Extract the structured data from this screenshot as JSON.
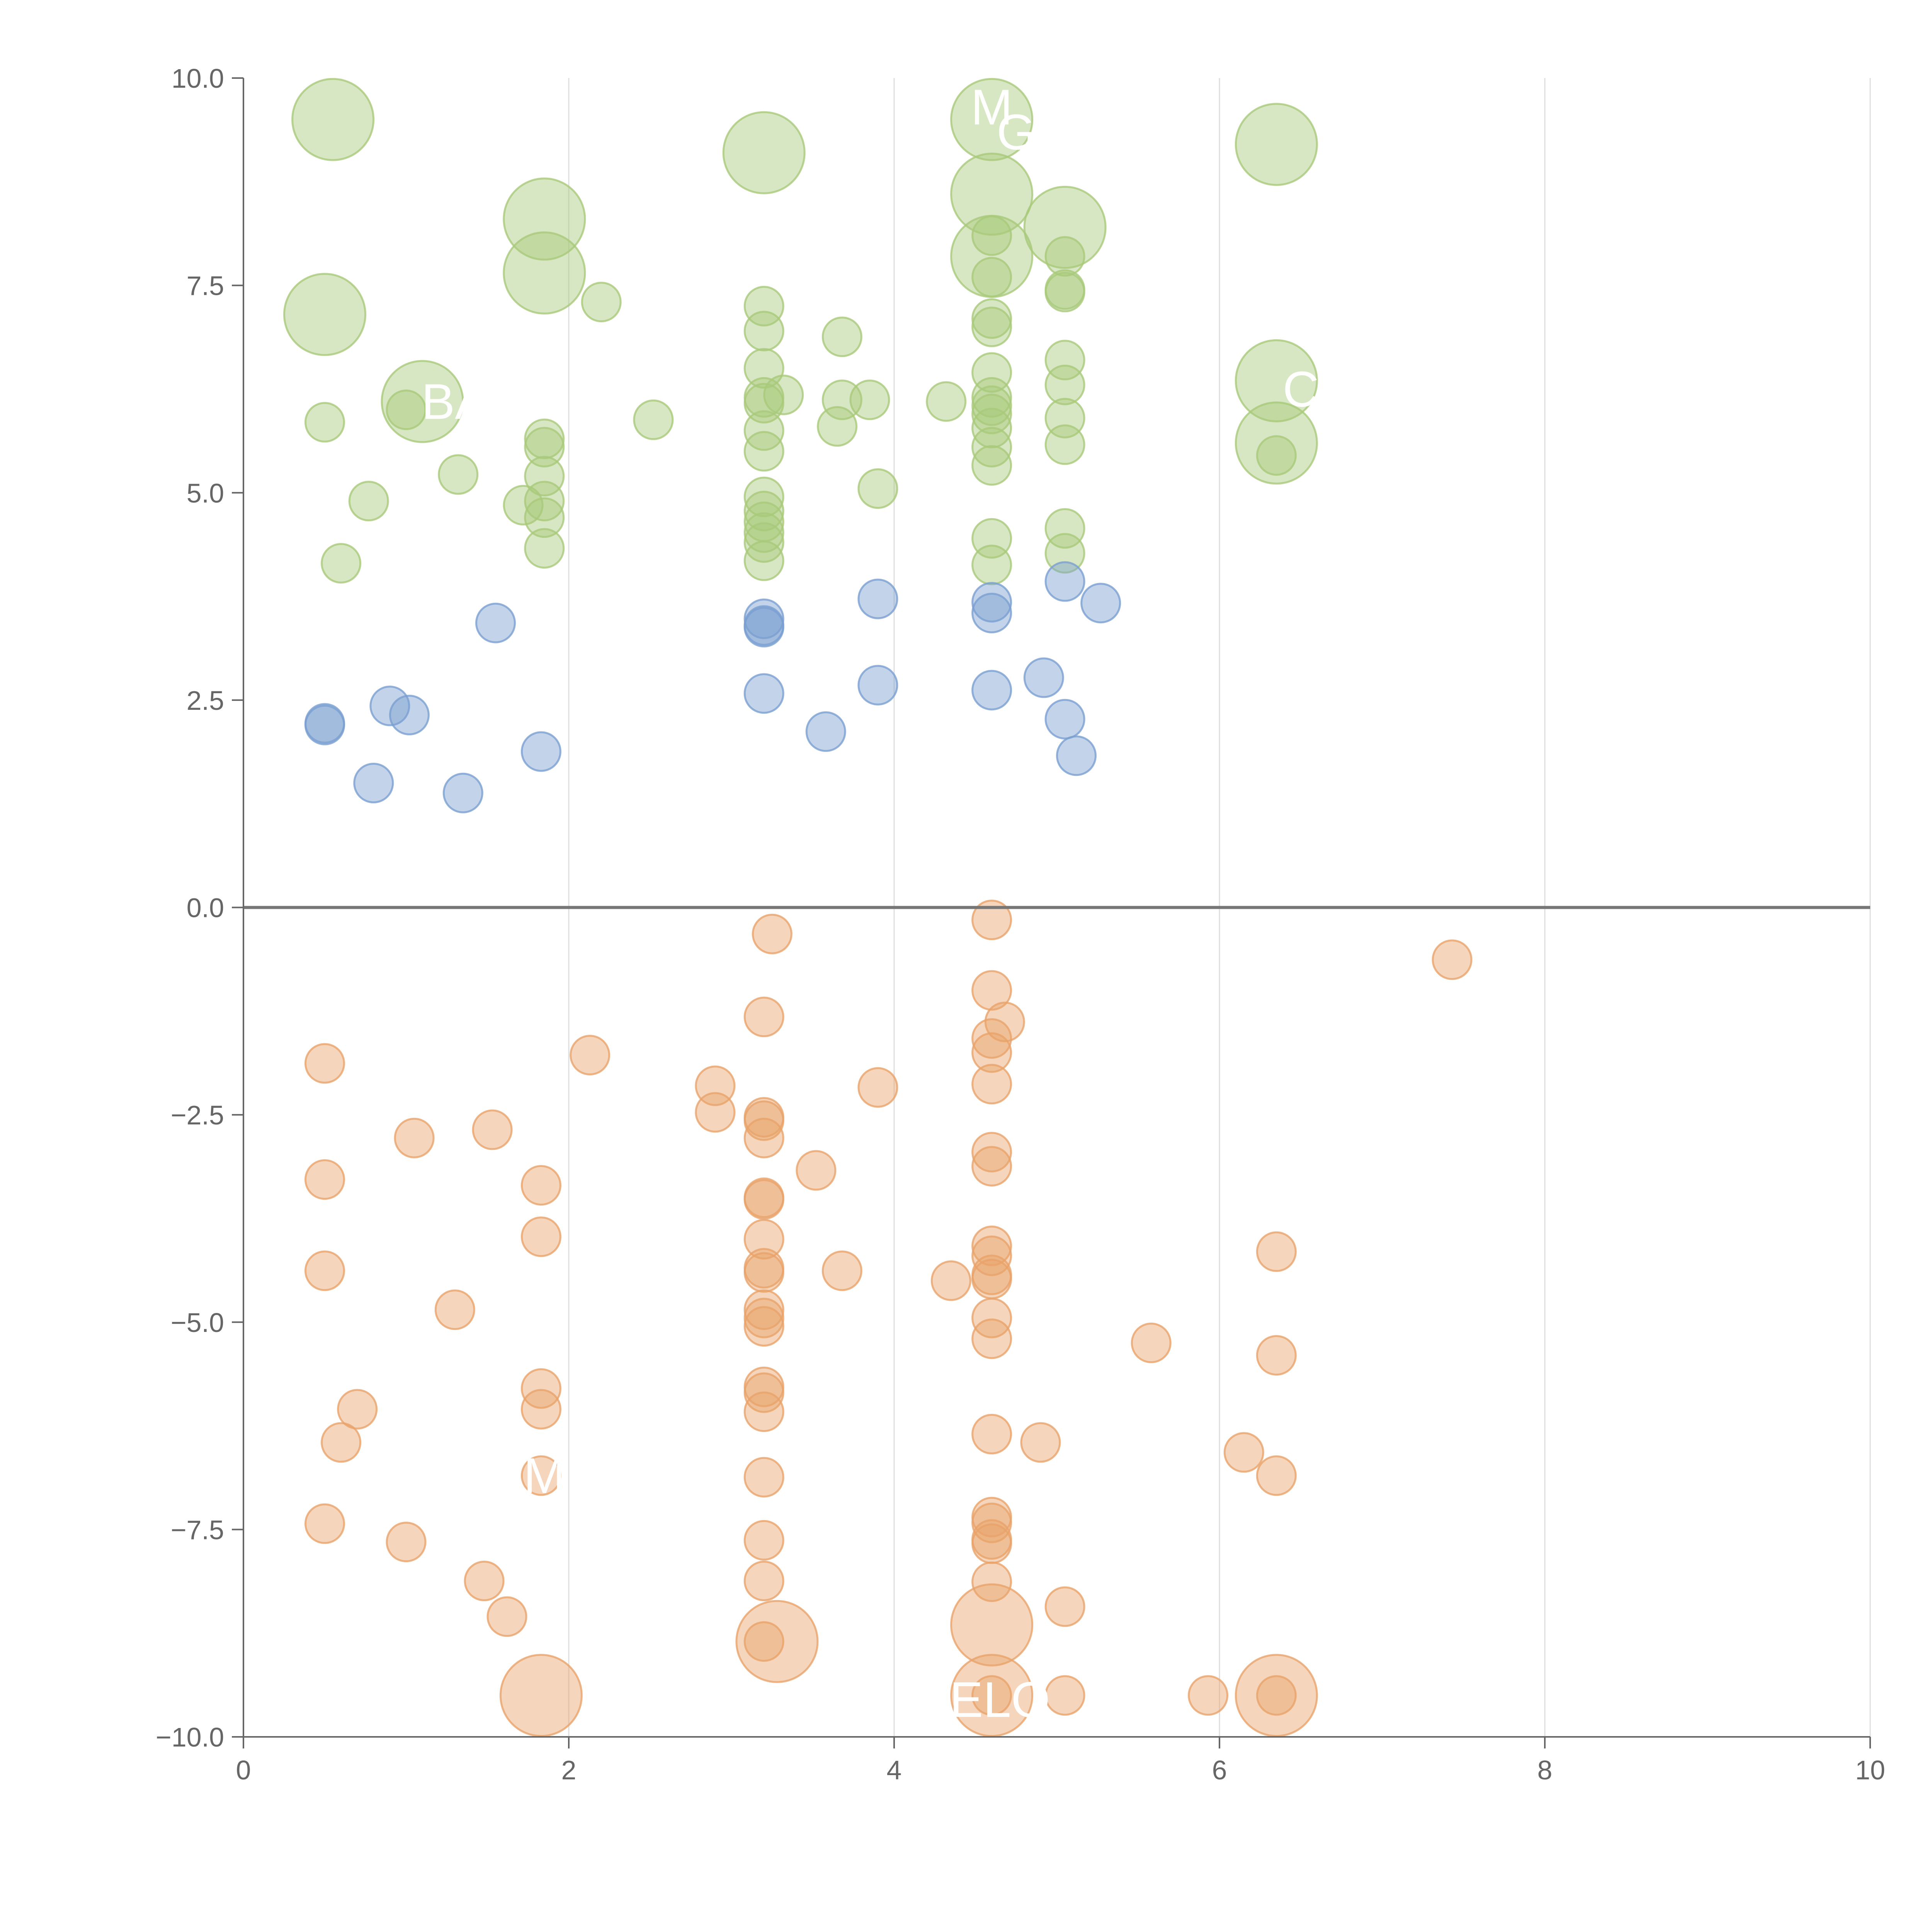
{
  "chart_data": {
    "type": "scatter",
    "title": "",
    "xlabel": "",
    "ylabel": "",
    "xlim": [
      0,
      10
    ],
    "ylim": [
      -10,
      10
    ],
    "x_ticks": [
      0,
      2,
      4,
      6,
      8,
      10
    ],
    "y_ticks": [
      10,
      7.5,
      5,
      2.5,
      0,
      -2.5,
      -5,
      -7.5,
      -10
    ],
    "x_tick_labels": [
      "0",
      "2",
      "4",
      "6",
      "8",
      "10"
    ],
    "y_tick_labels": [
      "10.0",
      "7.5",
      "5.0",
      "2.5",
      "0.0",
      "−2.5",
      "−5.0",
      "−7.5",
      "−10.0"
    ],
    "grid": "vertical",
    "zero_line": true,
    "colors": {
      "green": "#a9c97a",
      "blue": "#7b9fd1",
      "orange": "#e8a36a",
      "label": "#ffffff"
    },
    "series": [
      {
        "name": "green",
        "color": "#a9c97a",
        "points": [
          [
            0.55,
            9.5,
            2
          ],
          [
            3.2,
            9.1,
            2
          ],
          [
            4.6,
            9.5,
            2
          ],
          [
            6.35,
            9.2,
            2
          ],
          [
            1.85,
            8.3,
            2
          ],
          [
            4.6,
            8.6,
            2
          ],
          [
            5.05,
            8.2,
            2
          ],
          [
            1.85,
            7.65,
            2
          ],
          [
            4.6,
            7.85,
            2
          ],
          [
            0.5,
            7.15,
            2
          ],
          [
            1.1,
            6.1,
            2
          ],
          [
            6.35,
            6.35,
            2
          ],
          [
            6.35,
            5.6,
            2
          ],
          [
            2.2,
            7.3,
            1
          ],
          [
            3.2,
            7.25,
            1
          ],
          [
            3.2,
            6.95,
            1
          ],
          [
            3.68,
            6.88,
            1
          ],
          [
            4.6,
            8.1,
            1
          ],
          [
            4.6,
            7.6,
            1
          ],
          [
            4.6,
            7.1,
            1
          ],
          [
            5.05,
            7.85,
            1
          ],
          [
            5.05,
            7.45,
            1
          ],
          [
            5.05,
            7.42,
            1
          ],
          [
            4.6,
            7.0,
            1
          ],
          [
            0.5,
            5.85,
            1
          ],
          [
            1.0,
            6.0,
            1
          ],
          [
            2.52,
            5.88,
            1
          ],
          [
            3.2,
            6.5,
            1
          ],
          [
            3.2,
            6.15,
            1
          ],
          [
            3.2,
            6.08,
            1
          ],
          [
            3.32,
            6.18,
            1
          ],
          [
            3.68,
            6.12,
            1
          ],
          [
            3.85,
            6.12,
            1
          ],
          [
            4.32,
            6.1,
            1
          ],
          [
            3.65,
            5.8,
            1
          ],
          [
            3.2,
            5.75,
            1
          ],
          [
            3.2,
            5.5,
            1
          ],
          [
            4.6,
            6.45,
            1
          ],
          [
            4.6,
            6.15,
            1
          ],
          [
            4.6,
            6.05,
            1
          ],
          [
            4.6,
            5.95,
            1
          ],
          [
            4.6,
            5.78,
            1
          ],
          [
            4.6,
            5.55,
            1
          ],
          [
            4.6,
            5.33,
            1
          ],
          [
            5.05,
            6.6,
            1
          ],
          [
            5.05,
            6.3,
            1
          ],
          [
            5.05,
            5.9,
            1
          ],
          [
            5.05,
            5.58,
            1
          ],
          [
            1.85,
            5.65,
            1
          ],
          [
            1.85,
            5.55,
            1
          ],
          [
            1.85,
            5.2,
            1
          ],
          [
            1.32,
            5.22,
            1
          ],
          [
            0.77,
            4.9,
            1
          ],
          [
            1.72,
            4.85,
            1
          ],
          [
            1.85,
            4.9,
            1
          ],
          [
            1.85,
            4.7,
            1
          ],
          [
            1.85,
            4.33,
            1
          ],
          [
            0.6,
            4.15,
            1
          ],
          [
            3.2,
            4.95,
            1
          ],
          [
            3.2,
            4.78,
            1
          ],
          [
            3.2,
            4.65,
            1
          ],
          [
            3.2,
            4.52,
            1
          ],
          [
            3.2,
            4.4,
            1
          ],
          [
            3.2,
            4.18,
            1
          ],
          [
            3.9,
            5.05,
            1
          ],
          [
            4.6,
            4.45,
            1
          ],
          [
            4.6,
            4.13,
            1
          ],
          [
            5.05,
            4.57,
            1
          ],
          [
            5.05,
            4.27,
            1
          ],
          [
            6.35,
            5.45,
            1
          ]
        ]
      },
      {
        "name": "blue",
        "color": "#7b9fd1",
        "points": [
          [
            0.5,
            2.22,
            1
          ],
          [
            0.5,
            2.2,
            1
          ],
          [
            0.9,
            2.43,
            1
          ],
          [
            1.02,
            2.32,
            1
          ],
          [
            0.8,
            1.5,
            1
          ],
          [
            1.35,
            1.38,
            1
          ],
          [
            1.55,
            3.43,
            1
          ],
          [
            1.83,
            1.88,
            1
          ],
          [
            3.2,
            3.48,
            1
          ],
          [
            3.2,
            3.4,
            1
          ],
          [
            3.2,
            3.38,
            1
          ],
          [
            3.2,
            2.58,
            1
          ],
          [
            3.58,
            2.12,
            1
          ],
          [
            3.9,
            3.72,
            1
          ],
          [
            3.9,
            2.68,
            1
          ],
          [
            4.6,
            3.68,
            1
          ],
          [
            4.6,
            3.55,
            1
          ],
          [
            4.6,
            2.62,
            1
          ],
          [
            4.92,
            2.77,
            1
          ],
          [
            5.05,
            3.93,
            1
          ],
          [
            5.05,
            2.27,
            1
          ],
          [
            5.12,
            1.83,
            1
          ],
          [
            5.27,
            3.67,
            1
          ]
        ]
      },
      {
        "name": "orange",
        "color": "#e8a36a",
        "points": [
          [
            3.25,
            -0.32,
            1
          ],
          [
            4.6,
            -0.15,
            1
          ],
          [
            7.43,
            -0.63,
            1
          ],
          [
            3.2,
            -1.32,
            1
          ],
          [
            4.6,
            -1.0,
            1
          ],
          [
            4.68,
            -1.38,
            1
          ],
          [
            4.6,
            -1.58,
            1
          ],
          [
            4.6,
            -1.75,
            1
          ],
          [
            2.13,
            -1.78,
            1
          ],
          [
            0.5,
            -1.88,
            1
          ],
          [
            2.9,
            -2.15,
            1
          ],
          [
            3.9,
            -2.17,
            1
          ],
          [
            4.6,
            -2.13,
            1
          ],
          [
            2.9,
            -2.47,
            1
          ],
          [
            3.2,
            -2.53,
            1
          ],
          [
            3.2,
            -2.57,
            1
          ],
          [
            3.2,
            -2.78,
            1
          ],
          [
            1.53,
            -2.68,
            1
          ],
          [
            1.05,
            -2.78,
            1
          ],
          [
            4.6,
            -2.95,
            1
          ],
          [
            4.6,
            -3.12,
            1
          ],
          [
            3.52,
            -3.17,
            1
          ],
          [
            0.5,
            -3.28,
            1
          ],
          [
            1.83,
            -3.35,
            1
          ],
          [
            3.2,
            -3.5,
            1
          ],
          [
            3.2,
            -3.52,
            1
          ],
          [
            1.83,
            -3.97,
            1
          ],
          [
            3.2,
            -4.0,
            1
          ],
          [
            4.6,
            -4.08,
            1
          ],
          [
            4.6,
            -4.2,
            1
          ],
          [
            6.35,
            -4.15,
            1
          ],
          [
            0.5,
            -4.38,
            1
          ],
          [
            3.2,
            -4.35,
            1
          ],
          [
            3.2,
            -4.4,
            1
          ],
          [
            3.68,
            -4.38,
            1
          ],
          [
            4.6,
            -4.43,
            1
          ],
          [
            4.6,
            -4.48,
            1
          ],
          [
            4.35,
            -4.5,
            1
          ],
          [
            1.3,
            -4.85,
            1
          ],
          [
            3.2,
            -4.85,
            1
          ],
          [
            3.2,
            -4.95,
            1
          ],
          [
            3.2,
            -5.05,
            1
          ],
          [
            4.6,
            -4.95,
            1
          ],
          [
            4.6,
            -5.2,
            1
          ],
          [
            5.58,
            -5.25,
            1
          ],
          [
            6.35,
            -5.4,
            1
          ],
          [
            1.83,
            -5.8,
            1
          ],
          [
            1.83,
            -6.05,
            1
          ],
          [
            3.2,
            -5.78,
            1
          ],
          [
            3.2,
            -5.85,
            1
          ],
          [
            3.2,
            -6.08,
            1
          ],
          [
            0.7,
            -6.05,
            1
          ],
          [
            0.6,
            -6.45,
            1
          ],
          [
            4.6,
            -6.35,
            1
          ],
          [
            4.9,
            -6.45,
            1
          ],
          [
            6.15,
            -6.57,
            1
          ],
          [
            1.83,
            -6.85,
            1
          ],
          [
            3.2,
            -6.87,
            1
          ],
          [
            6.35,
            -6.85,
            1
          ],
          [
            0.5,
            -7.43,
            1
          ],
          [
            1.0,
            -7.65,
            1
          ],
          [
            3.2,
            -7.63,
            1
          ],
          [
            4.6,
            -7.35,
            1
          ],
          [
            4.6,
            -7.42,
            1
          ],
          [
            4.6,
            -7.62,
            1
          ],
          [
            4.6,
            -7.67,
            1
          ],
          [
            1.48,
            -8.12,
            1
          ],
          [
            1.62,
            -8.55,
            1
          ],
          [
            3.2,
            -8.12,
            1
          ],
          [
            4.6,
            -8.13,
            1
          ],
          [
            5.05,
            -8.43,
            1
          ],
          [
            3.2,
            -8.85,
            1
          ],
          [
            3.28,
            -8.85,
            2
          ],
          [
            4.6,
            -8.65,
            2
          ],
          [
            1.83,
            -9.5,
            2
          ],
          [
            4.6,
            -9.5,
            2
          ],
          [
            6.35,
            -9.5,
            2
          ],
          [
            4.6,
            -9.5,
            1
          ],
          [
            5.05,
            -9.5,
            1
          ],
          [
            5.93,
            -9.5,
            1
          ],
          [
            6.35,
            -9.5,
            1
          ]
        ]
      }
    ],
    "labels": [
      {
        "text": "M",
        "x": 4.6,
        "y": 9.65
      },
      {
        "text": "G",
        "x": 4.75,
        "y": 9.35
      },
      {
        "text": "BA",
        "x": 1.3,
        "y": 6.1
      },
      {
        "text": "C",
        "x": 6.5,
        "y": 6.25
      },
      {
        "text": "M",
        "x": 1.85,
        "y": -6.85
      },
      {
        "text": "ELO",
        "x": 4.65,
        "y": -9.55
      }
    ]
  }
}
